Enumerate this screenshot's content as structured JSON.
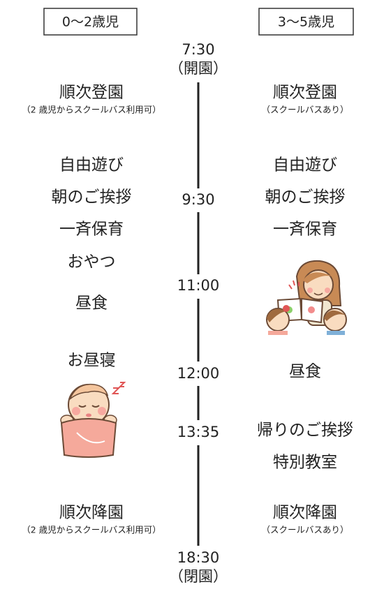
{
  "headers": {
    "left": "0〜2歳児",
    "right": "3〜5歳児"
  },
  "times": [
    {
      "time": "7:30",
      "note": "（開園）"
    },
    {
      "time": "9:30"
    },
    {
      "time": "11:00"
    },
    {
      "time": "12:00"
    },
    {
      "time": "13:35"
    },
    {
      "time": "18:30",
      "note": "（閉園）"
    }
  ],
  "left": [
    {
      "label": "順次登園",
      "note": "（2 歳児からスクールバス利用可）"
    },
    {
      "label": "自由遊び"
    },
    {
      "label": "朝のご挨拶"
    },
    {
      "label": "一斉保育"
    },
    {
      "label": "おやつ"
    },
    {
      "label": "昼食"
    },
    {
      "label": "お昼寝"
    },
    {
      "label": "順次降園",
      "note": "（2 歳児からスクールバス利用可）"
    }
  ],
  "right": [
    {
      "label": "順次登園",
      "note": "（スクールバスあり）"
    },
    {
      "label": "自由遊び"
    },
    {
      "label": "朝のご挨拶"
    },
    {
      "label": "一斉保育"
    },
    {
      "label": "昼食"
    },
    {
      "label": "帰りのご挨拶"
    },
    {
      "label": "特別教室"
    },
    {
      "label": "順次降園",
      "note": "（スクールバスあり）"
    }
  ]
}
